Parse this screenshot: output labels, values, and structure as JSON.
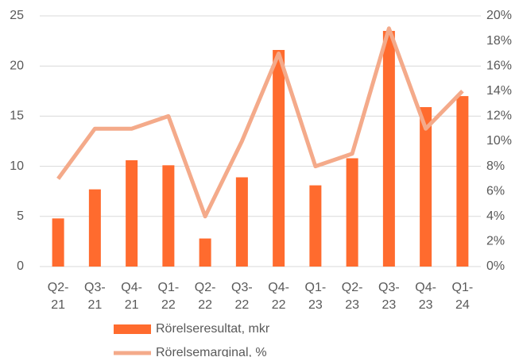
{
  "chart_data": {
    "type": "bar_line",
    "categories": [
      "Q2-\n21",
      "Q3-\n21",
      "Q4-\n21",
      "Q1-\n22",
      "Q2-\n22",
      "Q3-\n22",
      "Q4-\n22",
      "Q1-\n23",
      "Q2-\n23",
      "Q3-\n23",
      "Q4-\n23",
      "Q1-\n24"
    ],
    "series": [
      {
        "name": "Rörelseresultat, mkr",
        "type": "bar",
        "color": "#ff6b2e",
        "values": [
          4.8,
          7.7,
          10.6,
          10.1,
          2.8,
          8.9,
          21.6,
          8.1,
          10.8,
          23.5,
          15.9,
          17.0
        ]
      },
      {
        "name": "Rörelsemarginal, %",
        "type": "line",
        "axis": "y2",
        "color": "#f4aa8a",
        "values": [
          7,
          11,
          11,
          12,
          4,
          10,
          17,
          8,
          9,
          19,
          11,
          14
        ]
      }
    ],
    "ylim": [
      0,
      25
    ],
    "yticks": [
      0,
      5,
      10,
      15,
      20,
      25
    ],
    "y2lim": [
      0,
      20
    ],
    "y2ticks": [
      {
        "value": 0,
        "label": "0%"
      },
      {
        "value": 2,
        "label": "2%"
      },
      {
        "value": 4,
        "label": "4%"
      },
      {
        "value": 6,
        "label": "6%"
      },
      {
        "value": 8,
        "label": "8%"
      },
      {
        "value": 10,
        "label": "10%"
      },
      {
        "value": 12,
        "label": "12%"
      },
      {
        "value": 14,
        "label": "14%"
      },
      {
        "value": 16,
        "label": "16%"
      },
      {
        "value": 18,
        "label": "18%"
      },
      {
        "value": 20,
        "label": "20%"
      }
    ],
    "grid": true
  }
}
